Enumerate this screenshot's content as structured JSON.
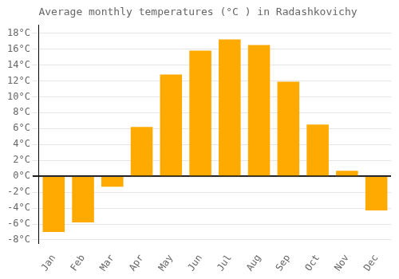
{
  "chart_data": {
    "type": "bar",
    "title": "Average monthly temperatures (°C ) in Radashkovichy",
    "categories": [
      "Jan",
      "Feb",
      "Mar",
      "Apr",
      "May",
      "Jun",
      "Jul",
      "Aug",
      "Sep",
      "Oct",
      "Nov",
      "Dec"
    ],
    "values": [
      -7,
      -5.8,
      -1.3,
      6.2,
      12.8,
      15.8,
      17.2,
      16.5,
      11.9,
      6.5,
      0.7,
      -4.3
    ],
    "color": "#FFAA00",
    "ylim": [
      -8.5,
      19
    ],
    "yticks": [
      {
        "value": -8,
        "label": "-8°C"
      },
      {
        "value": -6,
        "label": "-6°C"
      },
      {
        "value": -4,
        "label": "-4°C"
      },
      {
        "value": -2,
        "label": "-2°C"
      },
      {
        "value": 0,
        "label": "0°C"
      },
      {
        "value": 2,
        "label": "2°C"
      },
      {
        "value": 4,
        "label": "4°C"
      },
      {
        "value": 6,
        "label": "6°C"
      },
      {
        "value": 8,
        "label": "8°C"
      },
      {
        "value": 10,
        "label": "10°C"
      },
      {
        "value": 12,
        "label": "12°C"
      },
      {
        "value": 14,
        "label": "14°C"
      },
      {
        "value": 16,
        "label": "16°C"
      },
      {
        "value": 18,
        "label": "18°C"
      }
    ],
    "grid": true
  }
}
